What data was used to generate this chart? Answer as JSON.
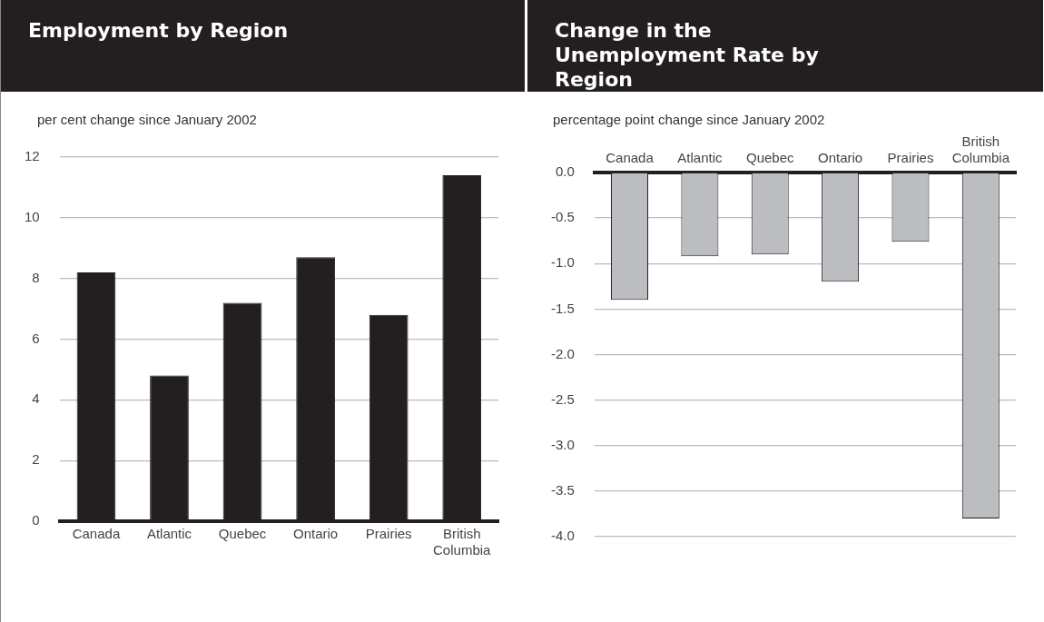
{
  "chart_data": [
    {
      "type": "bar",
      "title": "Employment by Region",
      "ylabel": "per cent change since January 2002",
      "categories": [
        "Canada",
        "Atlantic",
        "Quebec",
        "Ontario",
        "Prairies",
        "British Columbia"
      ],
      "values": [
        8.2,
        4.8,
        7.2,
        8.7,
        6.8,
        11.4
      ],
      "color": "#231f20",
      "ylim": [
        0,
        12
      ],
      "yticks": [
        0,
        2,
        4,
        6,
        8,
        10,
        12
      ],
      "grid": "y"
    },
    {
      "type": "bar",
      "title": "Change in the Unemployment Rate by Region",
      "ylabel": "percentage point change since January 2002",
      "categories": [
        "Canada",
        "Atlantic",
        "Quebec",
        "Ontario",
        "Prairies",
        "British Columbia"
      ],
      "values": [
        -1.4,
        -0.92,
        -0.9,
        -1.2,
        -0.76,
        -3.8
      ],
      "color": "#bcbdc1",
      "ylim": [
        -4.0,
        0.0
      ],
      "yticks": [
        {
          "value": 0,
          "label": "0.0"
        },
        -0.5,
        {
          "value": -1,
          "label": "-1.0"
        },
        -1.5,
        {
          "value": -2,
          "label": "-2.0"
        },
        -2.5,
        {
          "value": -3,
          "label": "-3.0"
        },
        -3.5,
        {
          "value": -4,
          "label": "-4.0"
        }
      ],
      "grid": "y"
    }
  ]
}
